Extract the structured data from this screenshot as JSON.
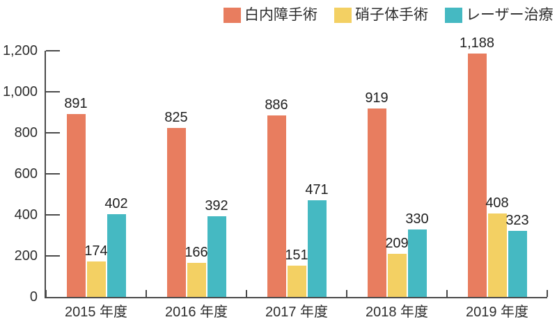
{
  "chart_data": {
    "type": "bar",
    "title": "",
    "xlabel": "",
    "ylabel": "",
    "categories": [
      "2015 年度",
      "2016 年度",
      "2017 年度",
      "2018 年度",
      "2019 年度"
    ],
    "series": [
      {
        "name": "白内障手術",
        "color": "#E87D5F",
        "values": [
          891,
          825,
          886,
          919,
          1188
        ]
      },
      {
        "name": "硝子体手術",
        "color": "#F3D063",
        "values": [
          174,
          166,
          151,
          209,
          408
        ]
      },
      {
        "name": "レーザー治療",
        "color": "#45B9C2",
        "values": [
          402,
          392,
          471,
          330,
          323
        ]
      }
    ],
    "ylim": [
      0,
      1200
    ],
    "yticks": [
      0,
      200,
      400,
      600,
      800,
      1000,
      1200
    ],
    "grid": false,
    "legend_position": "top",
    "value_labels": true,
    "number_format": "thousands-comma",
    "colors": {
      "axis": "#4a4a4a",
      "text": "#2d2d2d",
      "background": "#ffffff"
    }
  }
}
